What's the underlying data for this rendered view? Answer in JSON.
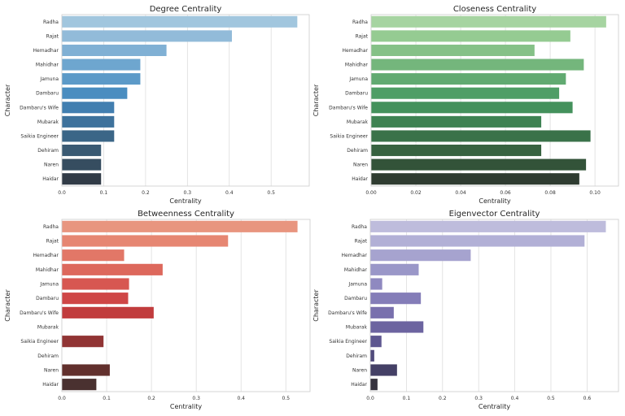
{
  "figure": {
    "panel_count": 4,
    "layout": "2x2"
  },
  "chart_data": [
    {
      "type": "bar",
      "orientation": "horizontal",
      "title": "Degree Centrality",
      "xlabel": "Centrality",
      "ylabel": "Character",
      "categories": [
        "Radha",
        "Rajat",
        "Hemadhar",
        "Mahidhar",
        "Jamuna",
        "Dambaru",
        "Dambaru's Wife",
        "Mubarak",
        "Saikia Engineer",
        "Dehiram",
        "Naren",
        "Haidar"
      ],
      "values": [
        0.5625,
        0.40625,
        0.25,
        0.1875,
        0.1875,
        0.15625,
        0.125,
        0.125,
        0.125,
        0.09375,
        0.09375,
        0.09375
      ],
      "xlim": [
        0,
        0.591
      ],
      "xticks": [
        0.0,
        0.1,
        0.2,
        0.3,
        0.4,
        0.5
      ],
      "xtick_labels": [
        "0.0",
        "0.1",
        "0.2",
        "0.3",
        "0.4",
        "0.5"
      ],
      "grid": "x",
      "palette": [
        "#a1c6de",
        "#92bbd9",
        "#80b0d4",
        "#6ea6cf",
        "#5c9ac8",
        "#4a8dc0",
        "#427fb0",
        "#3e729c",
        "#3b6687",
        "#3a5a73",
        "#364d60",
        "#313b47"
      ]
    },
    {
      "type": "bar",
      "orientation": "horizontal",
      "title": "Closeness Centrality",
      "xlabel": "Centrality",
      "ylabel": "Character",
      "categories": [
        "Radha",
        "Rajat",
        "Hemadhar",
        "Mahidhar",
        "Jamuna",
        "Dambaru",
        "Dambaru's Wife",
        "Mubarak",
        "Saikia Engineer",
        "Dehiram",
        "Naren",
        "Haidar"
      ],
      "values": [
        0.105,
        0.089,
        0.073,
        0.095,
        0.087,
        0.084,
        0.09,
        0.076,
        0.098,
        0.076,
        0.096,
        0.093
      ],
      "xlim": [
        0,
        0.1105
      ],
      "xticks": [
        0.0,
        0.02,
        0.04,
        0.06,
        0.08,
        0.1
      ],
      "xtick_labels": [
        "0.00",
        "0.02",
        "0.04",
        "0.06",
        "0.08",
        "0.10"
      ],
      "grid": "x",
      "palette": [
        "#a6d4a1",
        "#95cb92",
        "#85c187",
        "#74b67c",
        "#61aa71",
        "#4f9e66",
        "#44915c",
        "#3e8252",
        "#3a7249",
        "#376240",
        "#335339",
        "#2f3c31"
      ]
    },
    {
      "type": "bar",
      "orientation": "horizontal",
      "title": "Betweenness Centrality",
      "xlabel": "Centrality",
      "ylabel": "Character",
      "categories": [
        "Radha",
        "Rajat",
        "Hemadhar",
        "Mahidhar",
        "Jamuna",
        "Dambaru",
        "Dambaru's Wife",
        "Mubarak",
        "Saikia Engineer",
        "Dehiram",
        "Naren",
        "Haidar"
      ],
      "values": [
        0.526,
        0.371,
        0.139,
        0.225,
        0.15,
        0.148,
        0.205,
        0.0,
        0.093,
        0.0,
        0.107,
        0.077
      ],
      "xlim": [
        0,
        0.554
      ],
      "xticks": [
        0.0,
        0.1,
        0.2,
        0.3,
        0.4,
        0.5
      ],
      "xtick_labels": [
        "0.0",
        "0.1",
        "0.2",
        "0.3",
        "0.4",
        "0.5"
      ],
      "grid": "x",
      "palette": [
        "#e8957f",
        "#e68672",
        "#e27767",
        "#dd685c",
        "#d75751",
        "#cf4646",
        "#c13c3d",
        "#a93737",
        "#913434",
        "#78302f",
        "#62302d",
        "#4a3130"
      ]
    },
    {
      "type": "bar",
      "orientation": "horizontal",
      "title": "Eigenvector Centrality",
      "xlabel": "Centrality",
      "ylabel": "Character",
      "categories": [
        "Radha",
        "Rajat",
        "Hemadhar",
        "Mahidhar",
        "Jamuna",
        "Dambaru",
        "Dambaru's Wife",
        "Mubarak",
        "Saikia Engineer",
        "Dehiram",
        "Naren",
        "Haidar"
      ],
      "values": [
        0.652,
        0.593,
        0.278,
        0.134,
        0.033,
        0.14,
        0.065,
        0.147,
        0.031,
        0.011,
        0.074,
        0.02
      ],
      "xlim": [
        0,
        0.687
      ],
      "xticks": [
        0.0,
        0.1,
        0.2,
        0.3,
        0.4,
        0.5,
        0.6
      ],
      "xtick_labels": [
        "0.0",
        "0.1",
        "0.2",
        "0.3",
        "0.4",
        "0.5",
        "0.6"
      ],
      "grid": "x",
      "palette": [
        "#bebcdc",
        "#b2b0d6",
        "#a6a3cf",
        "#9a97c8",
        "#8f89c0",
        "#847db8",
        "#7970ad",
        "#6c64a0",
        "#5e5790",
        "#514b7c",
        "#444066",
        "#37343f"
      ]
    }
  ]
}
